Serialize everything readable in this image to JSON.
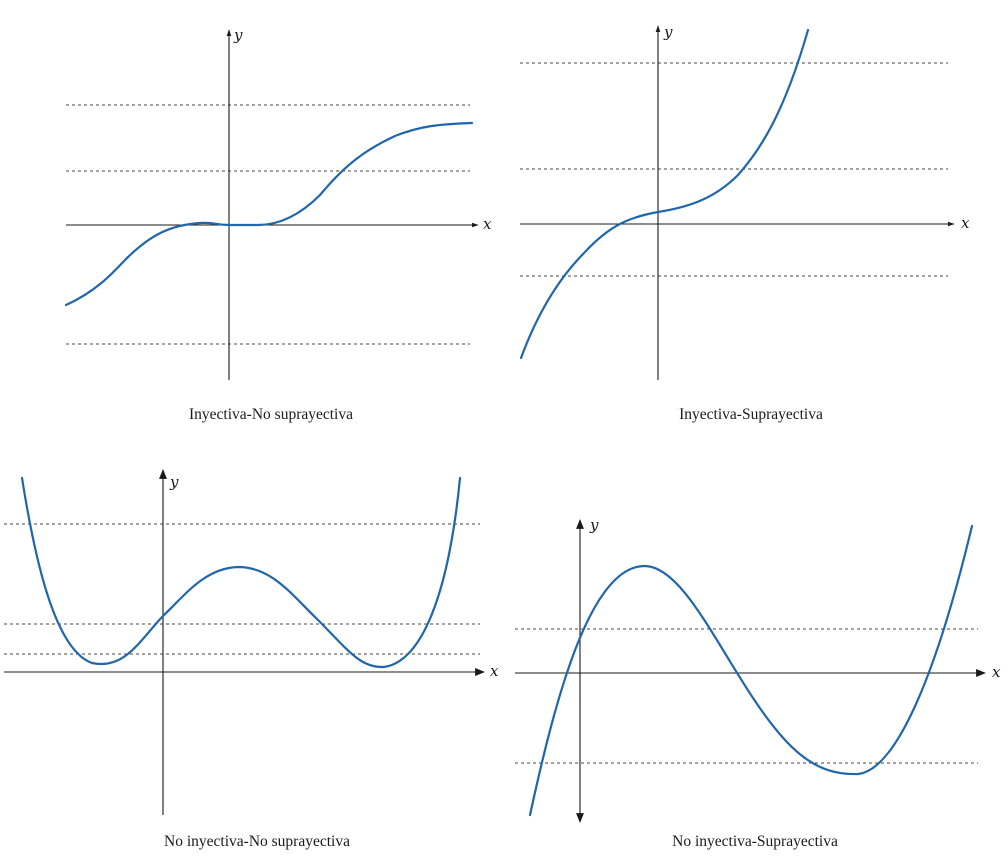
{
  "curve_color": "#1f66ad",
  "axis_color": "#1a1a1a",
  "panels": [
    {
      "id": "p1",
      "caption": "Inyectiva-No suprayectiva",
      "x_label": "x",
      "y_label": "y"
    },
    {
      "id": "p2",
      "caption": "Inyectiva-Suprayectiva",
      "x_label": "x",
      "y_label": "y"
    },
    {
      "id": "p3",
      "caption": "No inyectiva-No suprayectiva",
      "x_label": "x",
      "y_label": "y"
    },
    {
      "id": "p4",
      "caption": "No inyectiva-Suprayectiva",
      "x_label": "x",
      "y_label": "y"
    }
  ]
}
